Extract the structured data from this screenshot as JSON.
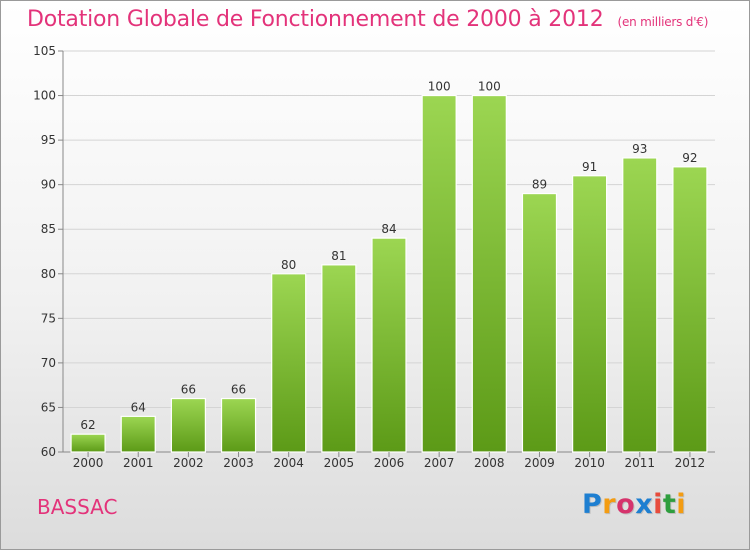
{
  "title": "Dotation Globale de Fonctionnement de 2000 à 2012",
  "subtitle": "(en milliers d'€)",
  "commune": "BASSAC",
  "logo": {
    "letters": [
      "P",
      "r",
      "o",
      "x",
      "i",
      "t",
      "i"
    ],
    "colors": [
      "#1e7fd1",
      "#f39c12",
      "#d6336c",
      "#1e7fd1",
      "#e74c3c",
      "#2e9e3e",
      "#f39c12"
    ]
  },
  "colors": {
    "bar": "#7cc234",
    "title": "#e3337a"
  },
  "chart_data": {
    "type": "bar",
    "categories": [
      "2000",
      "2001",
      "2002",
      "2003",
      "2004",
      "2005",
      "2006",
      "2007",
      "2008",
      "2009",
      "2010",
      "2011",
      "2012"
    ],
    "values": [
      62,
      64,
      66,
      66,
      80,
      81,
      84,
      100,
      100,
      89,
      91,
      93,
      92
    ],
    "ylim": [
      60,
      105
    ],
    "yticks": [
      60,
      65,
      70,
      75,
      80,
      85,
      90,
      95,
      100,
      105
    ],
    "grid": true,
    "xlabel": "",
    "ylabel": ""
  }
}
